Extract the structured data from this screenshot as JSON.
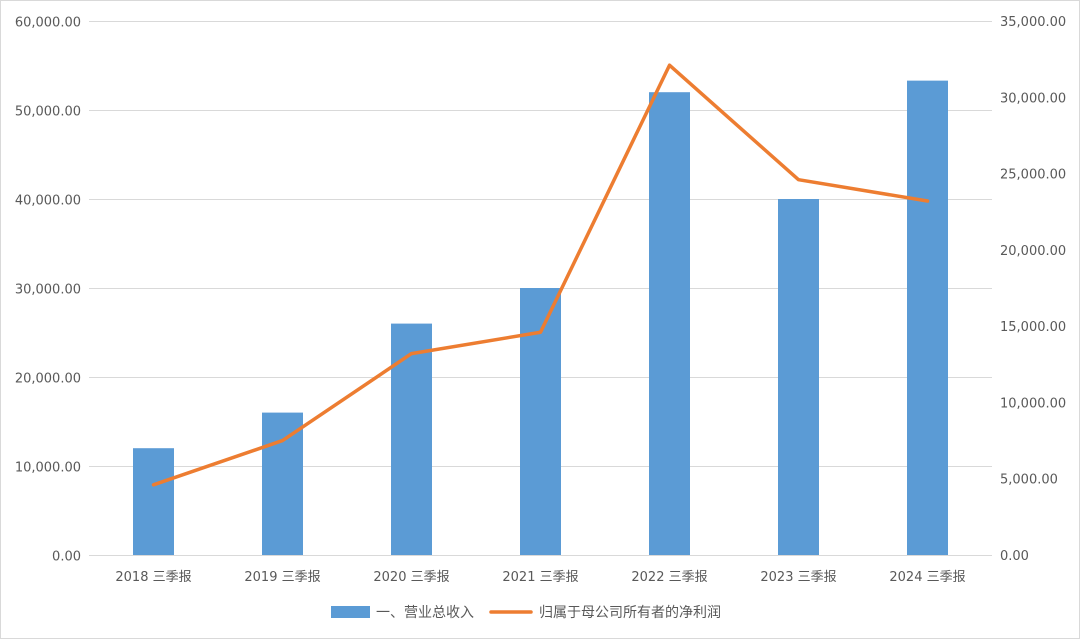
{
  "chart_data": {
    "type": "bar",
    "categories": [
      "2018 三季报",
      "2019 三季报",
      "2020 三季报",
      "2021 三季报",
      "2022 三季报",
      "2023 三季报",
      "2024 三季报"
    ],
    "series": [
      {
        "name": "一、营业总收入",
        "type": "bar",
        "axis": "left",
        "color": "#5B9BD5",
        "values": [
          12000,
          16000,
          26000,
          30000,
          52000,
          40000,
          53300
        ]
      },
      {
        "name": "归属于母公司所有者的净利润",
        "type": "line",
        "axis": "right",
        "color": "#ED7D31",
        "values": [
          4600,
          7500,
          13200,
          14600,
          32100,
          24600,
          23200
        ]
      }
    ],
    "y_left": {
      "lim": [
        0,
        60000
      ],
      "ticks": [
        0,
        10000,
        20000,
        30000,
        40000,
        50000,
        60000
      ],
      "tick_labels": [
        "0.00",
        "10,000.00",
        "20,000.00",
        "30,000.00",
        "40,000.00",
        "50,000.00",
        "60,000.00"
      ]
    },
    "y_right": {
      "lim": [
        0,
        35000
      ],
      "ticks": [
        0,
        5000,
        10000,
        15000,
        20000,
        25000,
        30000,
        35000
      ],
      "tick_labels": [
        "0.00",
        "5,000.00",
        "10,000.00",
        "15,000.00",
        "20,000.00",
        "25,000.00",
        "30,000.00",
        "35,000.00"
      ]
    },
    "grid": true,
    "legend_position": "bottom",
    "title": "",
    "xlabel": "",
    "ylabel": ""
  }
}
